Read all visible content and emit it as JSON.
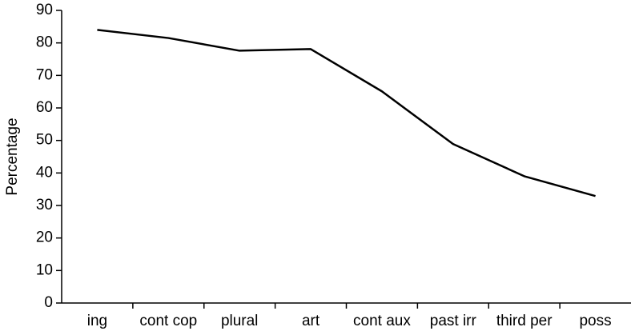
{
  "chart_data": {
    "type": "line",
    "ylabel": "Percentage",
    "categories": [
      "ing",
      "cont cop",
      "plural",
      "art",
      "cont aux",
      "past irr",
      "third per",
      "poss"
    ],
    "series": [
      {
        "name": null,
        "color": "#000000",
        "values": [
          84,
          81.5,
          77.6,
          78.1,
          65.1,
          48.9,
          39,
          32.9
        ]
      }
    ],
    "ylim": [
      0,
      90
    ],
    "yticks": [
      0,
      10,
      20,
      30,
      40,
      50,
      60,
      70,
      80,
      90
    ],
    "grid": false
  }
}
